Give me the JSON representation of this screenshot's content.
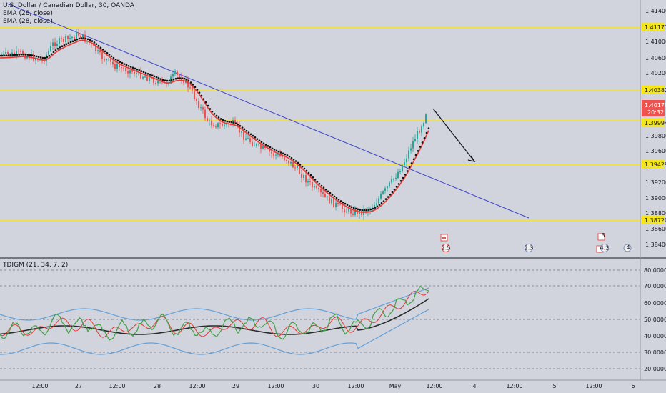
{
  "legend": {
    "symbol": "U.S. Dollar / Canadian Dollar, 30, OANDA",
    "ema1": "EMA (28, close)",
    "ema2": "EMA (28, close)",
    "osc": "TDIGM (21, 34, 7, 2)"
  },
  "colors": {
    "bg": "#d1d4dc",
    "up": "#26a69a",
    "down": "#ef5350",
    "level": "#f5e51c",
    "trend": "#3f46c8",
    "ema_red": "#e53935",
    "osc_green": "#43a047",
    "osc_red": "#e53935",
    "osc_blue": "#64a0d8",
    "osc_black": "#2b2b2b"
  },
  "price_axis": {
    "ticks": [
      "1.41400",
      "1.41000",
      "1.40600",
      "1.40200",
      "1.39800",
      "1.39600",
      "1.39200",
      "1.39000",
      "1.38800",
      "1.38600",
      "1.38400"
    ],
    "levels": [
      "1.41177",
      "1.40382",
      "1.39994",
      "1.39429",
      "1.38720"
    ],
    "current_price": "1.40179",
    "countdown": "20:32"
  },
  "osc_axis": {
    "ticks": [
      "80.00000",
      "70.00000",
      "60.00000",
      "50.00000",
      "40.00000",
      "30.00000",
      "20.00000"
    ]
  },
  "time_axis": {
    "labels": [
      "12:00",
      "27",
      "12:00",
      "28",
      "12:00",
      "29",
      "12:00",
      "30",
      "12:00",
      "May",
      "12:00",
      "4",
      "12:00",
      "5",
      "12:00",
      "6"
    ]
  },
  "event_markers": {
    "labels": [
      "2.5",
      "2.3",
      "3",
      "4.2",
      "4"
    ]
  }
}
